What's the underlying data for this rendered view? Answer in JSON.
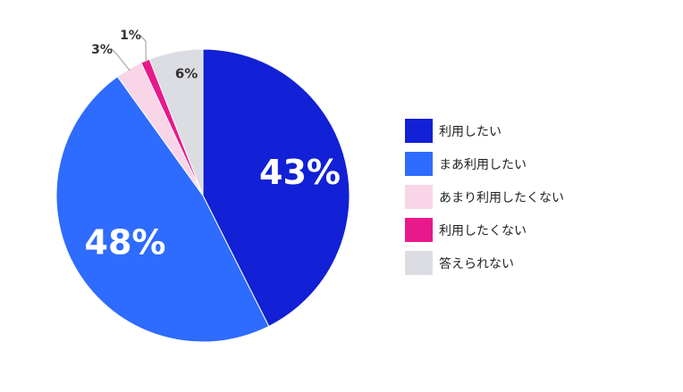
{
  "chart_data": {
    "type": "pie",
    "title": "",
    "slices": [
      {
        "label": "利用したい",
        "value": 43,
        "display": "43%",
        "color": "#1220d6"
      },
      {
        "label": "まあ利用したい",
        "value": 48,
        "display": "48%",
        "color": "#2e6bff"
      },
      {
        "label": "あまり利用したくない",
        "value": 3,
        "display": "3%",
        "color": "#f9d5e8"
      },
      {
        "label": "利用したくない",
        "value": 1,
        "display": "1%",
        "color": "#e8198b"
      },
      {
        "label": "答えられない",
        "value": 6,
        "display": "6%",
        "color": "#dcdde3"
      }
    ],
    "start_angle": "12 o'clock",
    "direction": "clockwise",
    "legend_position": "right"
  }
}
